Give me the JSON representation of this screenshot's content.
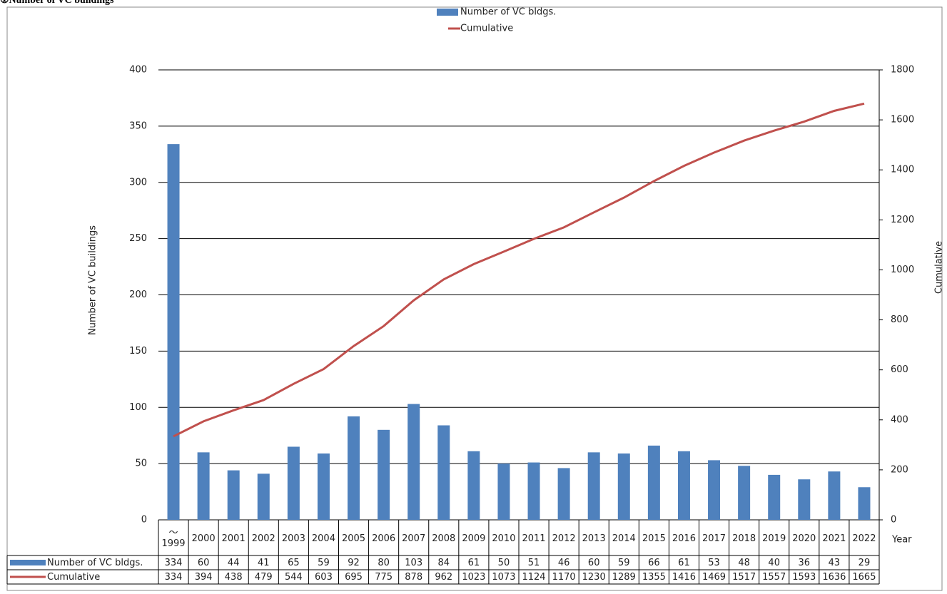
{
  "chart_data": {
    "type": "bar_line",
    "title": "①Number of VC buildings",
    "y_label": "Number of VC buildings",
    "y2_label": "Cumulative",
    "x_label": "Year",
    "categories": [
      "～\n1999",
      "2000",
      "2001",
      "2002",
      "2003",
      "2004",
      "2005",
      "2006",
      "2007",
      "2008",
      "2009",
      "2010",
      "2011",
      "2012",
      "2013",
      "2014",
      "2015",
      "2016",
      "2017",
      "2018",
      "2019",
      "2020",
      "2021",
      "2022"
    ],
    "series": [
      {
        "name": "Number of VC bldgs.",
        "type": "bar",
        "color": "#4f81bd",
        "values": [
          334,
          60,
          44,
          41,
          65,
          59,
          92,
          80,
          103,
          84,
          61,
          50,
          51,
          46,
          60,
          59,
          66,
          61,
          53,
          48,
          40,
          36,
          43,
          29
        ]
      },
      {
        "name": "Cumulative",
        "type": "line",
        "axis": "y2",
        "color": "#c0504d",
        "values": [
          334,
          394,
          438,
          479,
          544,
          603,
          695,
          775,
          878,
          962,
          1023,
          1073,
          1124,
          1170,
          1230,
          1289,
          1355,
          1416,
          1469,
          1517,
          1557,
          1593,
          1636,
          1665
        ]
      }
    ],
    "ylim": [
      0,
      400
    ],
    "yticks": [
      0,
      50,
      100,
      150,
      200,
      250,
      300,
      350,
      400
    ],
    "y2lim": [
      0,
      1800
    ],
    "y2ticks": [
      0,
      200,
      400,
      600,
      800,
      1000,
      1200,
      1400,
      1600,
      1800
    ],
    "grid": true
  }
}
